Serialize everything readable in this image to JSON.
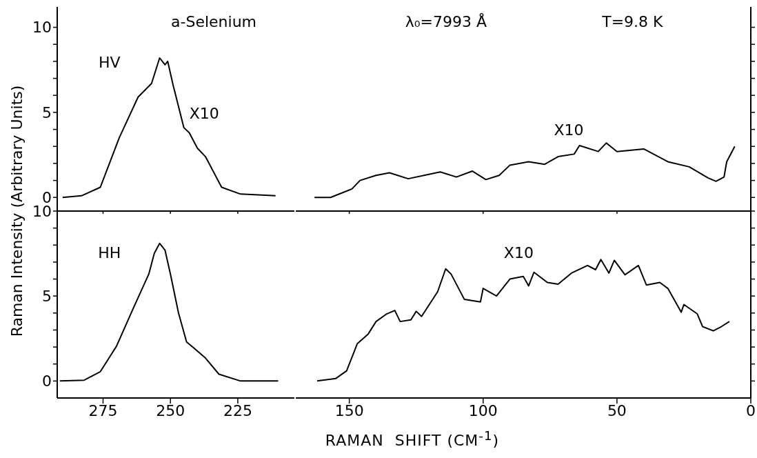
{
  "chart_data": [
    {
      "type": "line",
      "ylabel": "Raman Intensity (Arbitrary Units)",
      "annotations": [
        "HV",
        "a-Selenium",
        "X10"
      ],
      "x": [
        290,
        283,
        276,
        269,
        262,
        257,
        254,
        252,
        251,
        249,
        245,
        243,
        240,
        237,
        231,
        224,
        211
      ],
      "series": [
        {
          "color": "#000000",
          "values": [
            0,
            0.1,
            0.6,
            3.5,
            5.9,
            6.7,
            8.2,
            7.8,
            8.0,
            6.6,
            4.1,
            3.8,
            2.9,
            2.4,
            0.6,
            0.2,
            0.1
          ]
        }
      ],
      "xlim": [
        292,
        204
      ],
      "xticks": [
        275,
        250,
        225
      ],
      "ylim": [
        -0.8,
        11.2
      ],
      "yticks": [
        0,
        {
          "value": 1,
          "label": null
        },
        {
          "value": 2,
          "label": null
        },
        {
          "value": 3,
          "label": null
        },
        {
          "value": 4,
          "label": null
        },
        5,
        {
          "value": 6,
          "label": null
        },
        {
          "value": 7,
          "label": null
        },
        {
          "value": 8,
          "label": null
        },
        {
          "value": 9,
          "label": null
        },
        10
      ],
      "tick_labels": "y"
    },
    {
      "type": "line",
      "annotations": [
        "λ₀=7993 Å",
        "T=9.8 K",
        "X10"
      ],
      "x": [
        163,
        157,
        149,
        146,
        140,
        135,
        128,
        116,
        110,
        104,
        99,
        94,
        90,
        83,
        77,
        72,
        66,
        64,
        57,
        54,
        50,
        40,
        31,
        23,
        16,
        13,
        10,
        9,
        6
      ],
      "series": [
        {
          "color": "#000000",
          "values": [
            0,
            0,
            0.5,
            1.0,
            1.3,
            1.45,
            1.1,
            1.5,
            1.2,
            1.55,
            1.05,
            1.3,
            1.9,
            2.1,
            1.95,
            2.4,
            2.55,
            3.05,
            2.7,
            3.2,
            2.7,
            2.85,
            2.1,
            1.8,
            1.15,
            0.95,
            1.2,
            2.1,
            3.0
          ]
        }
      ],
      "xlim": [
        170,
        0
      ],
      "xticks": [
        150,
        100,
        50,
        0
      ],
      "ylim": [
        -0.8,
        11.2
      ],
      "yticks": [
        {
          "value": 0,
          "label": null
        },
        {
          "value": 1,
          "label": null
        },
        {
          "value": 2,
          "label": null
        },
        {
          "value": 3,
          "label": null
        },
        {
          "value": 4,
          "label": null
        },
        {
          "value": 5,
          "label": null
        },
        {
          "value": 6,
          "label": null
        },
        {
          "value": 7,
          "label": null
        },
        {
          "value": 8,
          "label": null
        },
        {
          "value": 9,
          "label": null
        },
        {
          "value": 10,
          "label": null
        }
      ],
      "tick_labels": false
    },
    {
      "type": "line",
      "annotations": [
        "HH"
      ],
      "x": [
        291,
        282,
        276,
        270,
        264,
        258,
        256,
        254,
        252,
        250,
        247,
        244,
        241,
        237,
        232,
        224,
        210
      ],
      "series": [
        {
          "color": "#000000",
          "values": [
            0,
            0.05,
            0.55,
            2.05,
            4.2,
            6.3,
            7.5,
            8.1,
            7.7,
            6.3,
            4.0,
            2.3,
            1.9,
            1.35,
            0.4,
            0,
            0
          ]
        }
      ],
      "xlim": [
        292,
        204
      ],
      "xticks": [
        275,
        250,
        225
      ],
      "ylim": [
        -1,
        10
      ],
      "yticks": [
        0,
        {
          "value": 1,
          "label": null
        },
        {
          "value": 2,
          "label": null
        },
        {
          "value": 3,
          "label": null
        },
        {
          "value": 4,
          "label": null
        },
        5,
        {
          "value": 6,
          "label": null
        },
        {
          "value": 7,
          "label": null
        },
        {
          "value": 8,
          "label": null
        },
        {
          "value": 9,
          "label": null
        },
        10
      ]
    },
    {
      "type": "line",
      "xlabel": "RAMAN  SHIFT (CM$^{-1}$)",
      "annotations": [
        "X10"
      ],
      "x": [
        162,
        155,
        151,
        147,
        143,
        140,
        136,
        133,
        131,
        127,
        125,
        123,
        117,
        114,
        112,
        107,
        101,
        100,
        95,
        90,
        85,
        83,
        81,
        76,
        72,
        67,
        61,
        58,
        56,
        53,
        51,
        47,
        42,
        39,
        34,
        31,
        26,
        25,
        20,
        18,
        14,
        11,
        8
      ],
      "series": [
        {
          "color": "#000000",
          "values": [
            0,
            0.15,
            0.6,
            2.2,
            2.75,
            3.5,
            3.95,
            4.15,
            3.5,
            3.6,
            4.1,
            3.8,
            5.25,
            6.6,
            6.3,
            4.8,
            4.65,
            5.45,
            5.0,
            6.0,
            6.15,
            5.6,
            6.4,
            5.8,
            5.7,
            6.35,
            6.8,
            6.55,
            7.15,
            6.35,
            7.1,
            6.25,
            6.8,
            5.65,
            5.8,
            5.45,
            4.05,
            4.5,
            3.95,
            3.2,
            2.95,
            3.2,
            3.5
          ]
        }
      ],
      "xlim": [
        170,
        0
      ],
      "xticks": [
        150,
        100,
        50,
        0
      ],
      "ylim": [
        -1,
        10
      ],
      "yticks": [
        {
          "value": 0,
          "label": null
        },
        {
          "value": 1,
          "label": null
        },
        {
          "value": 2,
          "label": null
        },
        {
          "value": 3,
          "label": null
        },
        {
          "value": 4,
          "label": null
        },
        {
          "value": 5,
          "label": null
        },
        {
          "value": 6,
          "label": null
        },
        {
          "value": 7,
          "label": null
        },
        {
          "value": 8,
          "label": null
        },
        {
          "value": 9,
          "label": null
        },
        {
          "value": 10,
          "label": null
        }
      ],
      "tick_labels": "x"
    }
  ]
}
